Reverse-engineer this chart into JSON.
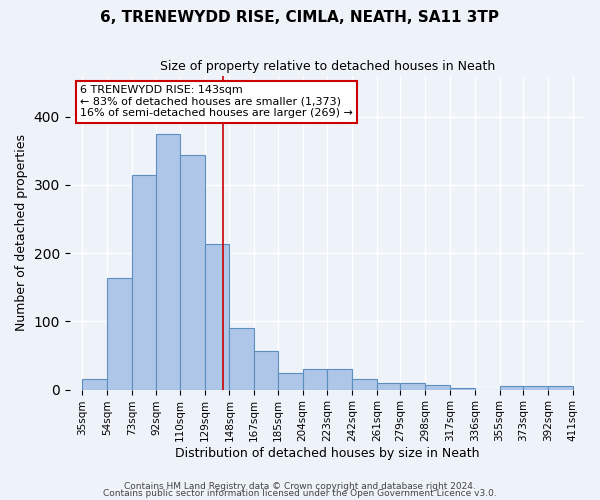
{
  "title": "6, TRENEWYDD RISE, CIMLA, NEATH, SA11 3TP",
  "subtitle": "Size of property relative to detached houses in Neath",
  "xlabel": "Distribution of detached houses by size in Neath",
  "ylabel": "Number of detached properties",
  "bin_labels": [
    "35sqm",
    "54sqm",
    "73sqm",
    "92sqm",
    "110sqm",
    "129sqm",
    "148sqm",
    "167sqm",
    "185sqm",
    "204sqm",
    "223sqm",
    "242sqm",
    "261sqm",
    "279sqm",
    "298sqm",
    "317sqm",
    "336sqm",
    "355sqm",
    "373sqm",
    "392sqm",
    "411sqm"
  ],
  "bin_edges": [
    35,
    54,
    73,
    92,
    110,
    129,
    148,
    167,
    185,
    204,
    223,
    242,
    261,
    279,
    298,
    317,
    336,
    355,
    373,
    392,
    411
  ],
  "bar_heights": [
    16,
    163,
    314,
    375,
    344,
    213,
    90,
    56,
    25,
    30,
    30,
    16,
    10,
    9,
    7,
    3,
    0,
    5,
    5,
    5
  ],
  "bar_color": "#aec6e8",
  "bar_edge_color": "#5a8fc0",
  "bg_color": "#eef2f9",
  "grid_color": "#ffffff",
  "vline_x": 143,
  "vline_color": "#cc0000",
  "annotation_line1": "6 TRENEWYDD RISE: 143sqm",
  "annotation_line2": "← 83% of detached houses are smaller (1,373)",
  "annotation_line3": "16% of semi-detached houses are larger (269) →",
  "annotation_box_color": "#ffffff",
  "annotation_border_color": "#cc0000",
  "ylim": [
    0,
    460
  ],
  "footnote1": "Contains HM Land Registry data © Crown copyright and database right 2024.",
  "footnote2": "Contains public sector information licensed under the Open Government Licence v3.0."
}
